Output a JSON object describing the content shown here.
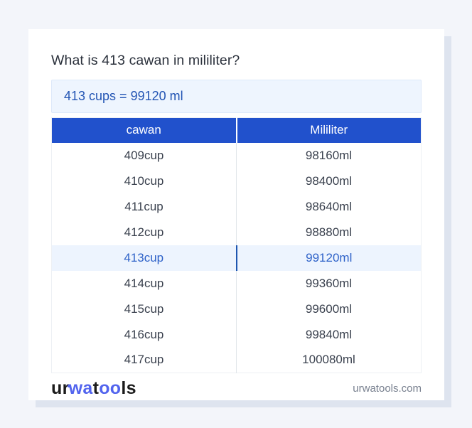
{
  "title": "What is 413 cawan in mililiter?",
  "answer": {
    "text": "413 cups = 99120 ml"
  },
  "table": {
    "columns": [
      "cawan",
      "Mililiter"
    ],
    "rows": [
      {
        "cawan": "409cup",
        "ml": "98160ml",
        "highlighted": false
      },
      {
        "cawan": "410cup",
        "ml": "98400ml",
        "highlighted": false
      },
      {
        "cawan": "411cup",
        "ml": "98640ml",
        "highlighted": false
      },
      {
        "cawan": "412cup",
        "ml": "98880ml",
        "highlighted": false
      },
      {
        "cawan": "413cup",
        "ml": "99120ml",
        "highlighted": true
      },
      {
        "cawan": "414cup",
        "ml": "99360ml",
        "highlighted": false
      },
      {
        "cawan": "415cup",
        "ml": "99600ml",
        "highlighted": false
      },
      {
        "cawan": "416cup",
        "ml": "99840ml",
        "highlighted": false
      },
      {
        "cawan": "417cup",
        "ml": "100080ml",
        "highlighted": false
      }
    ]
  },
  "footer": {
    "logo_parts": {
      "p1": "ur",
      "p2": "wa",
      "p3": "t",
      "p4": "oo",
      "p5": "ls"
    },
    "domain": "urwatools.com"
  },
  "colors": {
    "page_background": "#f3f5fa",
    "card_background": "#ffffff",
    "card_shadow": "#dee4ef",
    "header_blue": "#2151cc",
    "answer_box_background": "#eef5fe",
    "answer_text": "#2355b4",
    "highlight_row_background": "#edf4fe",
    "highlight_text": "#2d61c8",
    "highlight_divider": "#1e56b0",
    "cell_text": "#3a414e",
    "logo_blue": "#5264ee",
    "domain_text": "#78808f"
  }
}
